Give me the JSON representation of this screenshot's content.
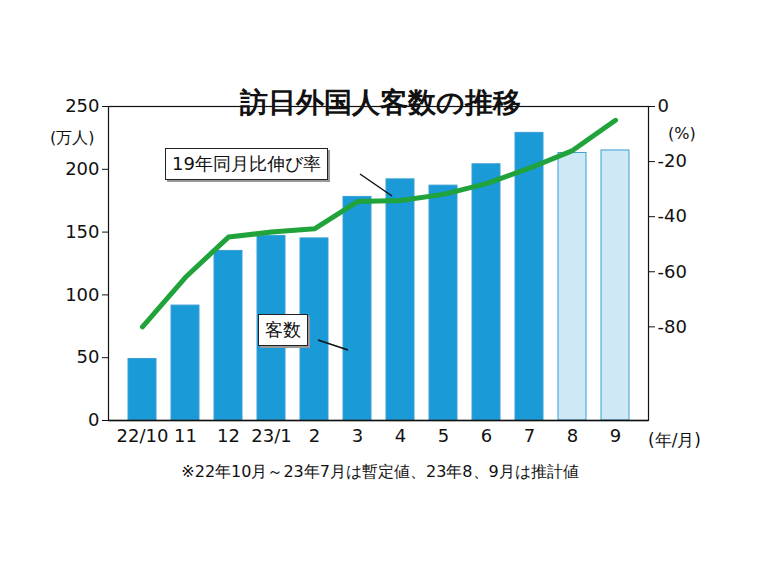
{
  "chart_data": {
    "type": "bar",
    "title": "訪日外国人客数の推移",
    "categories": [
      "22/10",
      "11",
      "12",
      "23/1",
      "2",
      "3",
      "4",
      "5",
      "6",
      "7",
      "8",
      "9"
    ],
    "xlabel": "(年/月)",
    "ylabel": "(万人)",
    "y2label": "(%)",
    "ylim": [
      0,
      250
    ],
    "yticks": [
      0,
      50,
      100,
      150,
      200,
      250
    ],
    "y2lim": [
      -114,
      0
    ],
    "y2ticks": [
      -80,
      -60,
      -40,
      -20,
      0
    ],
    "note": "※22年10月～23年7月は暫定値、23年8、9月は推計値",
    "series": [
      {
        "name": "客数",
        "type": "bar",
        "colors": [
          "#1a9ad6",
          "#1a9ad6",
          "#1a9ad6",
          "#1a9ad6",
          "#1a9ad6",
          "#1a9ad6",
          "#1a9ad6",
          "#1a9ad6",
          "#1a9ad6",
          "#1a9ad6",
          "#cfe8f6",
          "#cfe8f6"
        ],
        "values": [
          49,
          91.5,
          135,
          147,
          145,
          178,
          192,
          187,
          204,
          229,
          213,
          215
        ]
      },
      {
        "name": "19年同月比伸び率",
        "type": "line",
        "color": "#1fa33a",
        "axis": "y2",
        "values": [
          -80,
          -62,
          -47.4,
          -45.6,
          -44.4,
          -34.5,
          -34.1,
          -31.9,
          -28,
          -22.4,
          -16,
          -5
        ]
      }
    ]
  }
}
